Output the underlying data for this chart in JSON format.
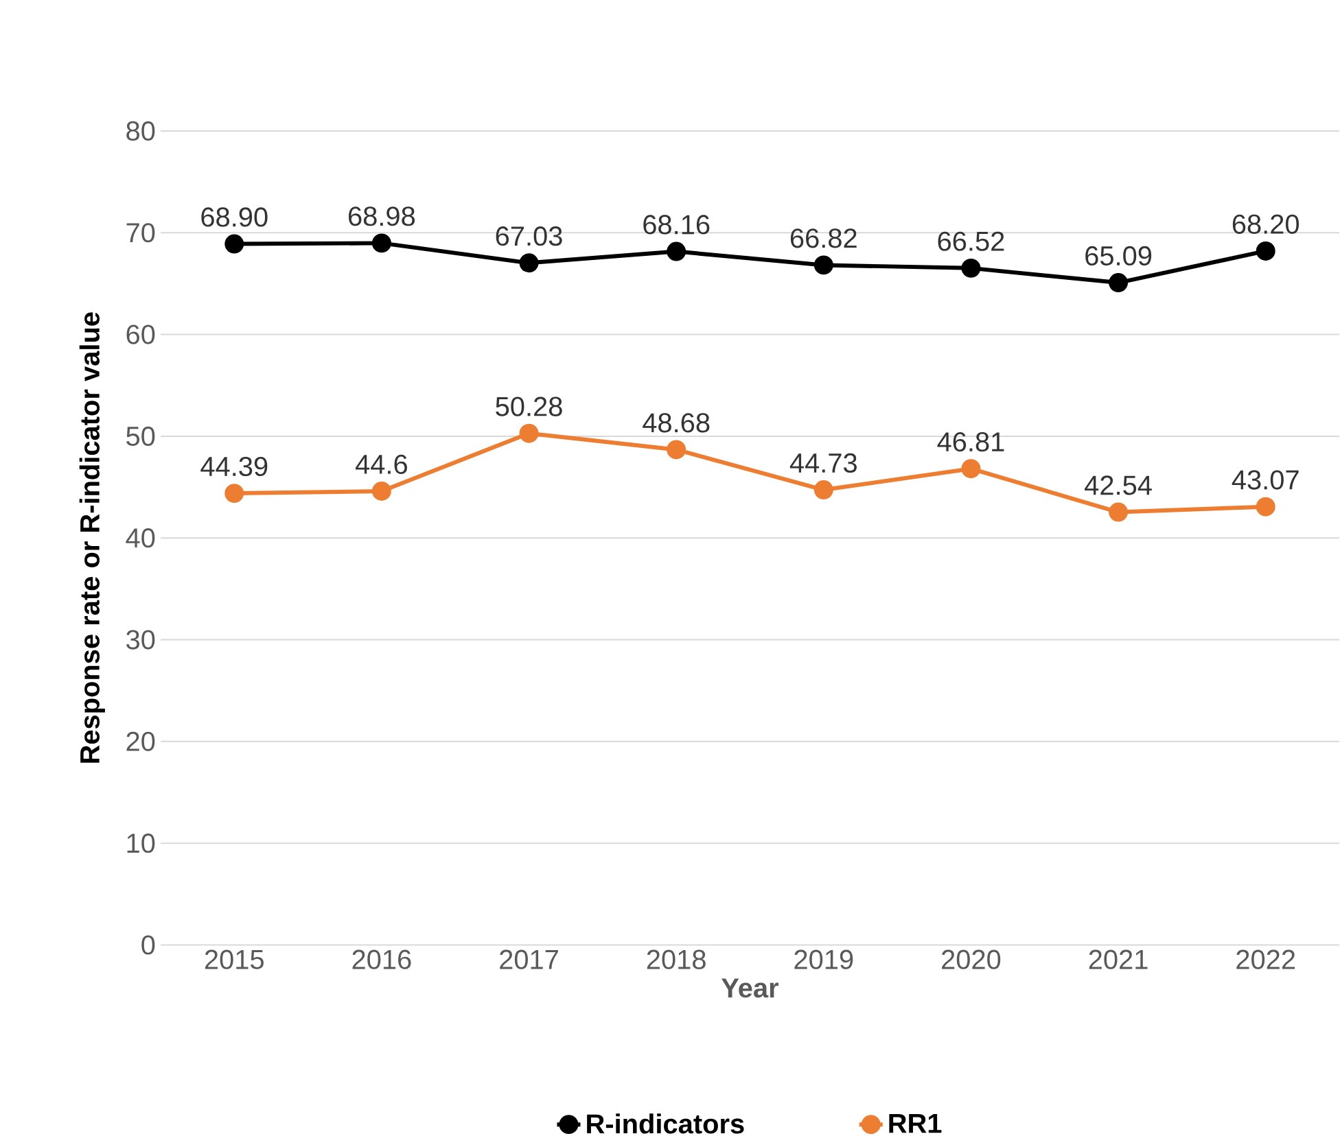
{
  "chart_data": {
    "type": "line",
    "xlabel": "Year",
    "ylabel": "Response rate or R-indicator value",
    "categories": [
      "2015",
      "2016",
      "2017",
      "2018",
      "2019",
      "2020",
      "2021",
      "2022"
    ],
    "series": [
      {
        "name": "R-indicators",
        "color": "#000000",
        "values": [
          68.9,
          68.98,
          67.03,
          68.16,
          66.82,
          66.52,
          65.09,
          68.2
        ],
        "value_labels": [
          "68.90",
          "68.98",
          "67.03",
          "68.16",
          "66.82",
          "66.52",
          "65.09",
          "68.20"
        ]
      },
      {
        "name": "RR1",
        "color": "#ed7d31",
        "values": [
          44.39,
          44.6,
          50.28,
          48.68,
          44.73,
          46.81,
          42.54,
          43.07
        ],
        "value_labels": [
          "44.39",
          "44.6",
          "50.28",
          "48.68",
          "44.73",
          "46.81",
          "42.54",
          "43.07"
        ]
      }
    ],
    "ylim": [
      0,
      80
    ],
    "yticks": [
      0,
      10,
      20,
      30,
      40,
      50,
      60,
      70,
      80
    ],
    "grid": "y",
    "legend": "bottom",
    "marker": "circle",
    "line_style": "solid"
  }
}
